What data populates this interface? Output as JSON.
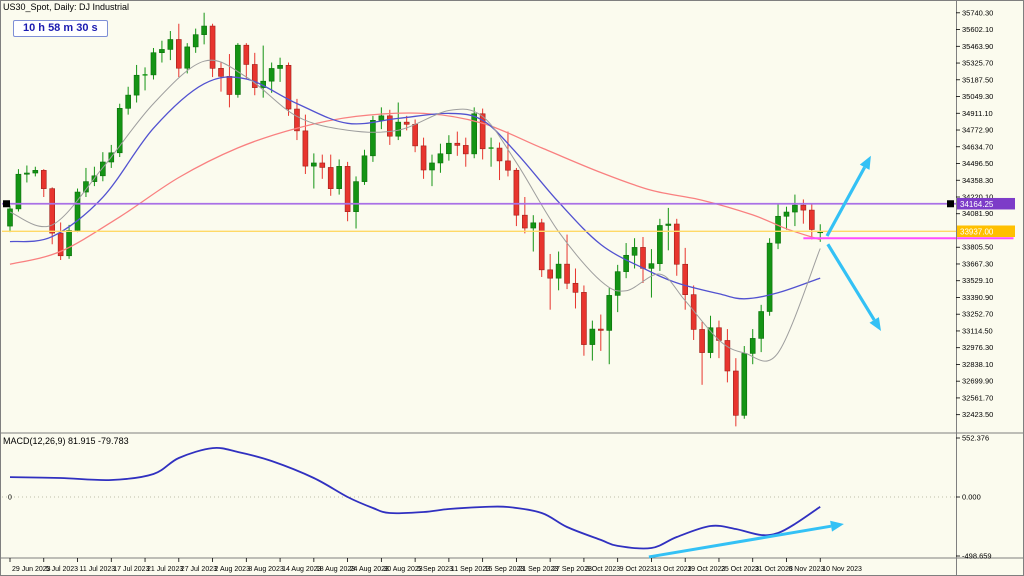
{
  "window": {
    "title": "US30_Spot, Daily: DJ Industrial",
    "timer": "10 h 58 m 30 s"
  },
  "colors": {
    "background": "#FBFBEE",
    "frame": "#7F7F7F",
    "bull": "#149414",
    "bull_border": "#0A6E0A",
    "bear": "#E8352E",
    "bear_border": "#9E1F1A",
    "ma_slow": "#F98080",
    "ma_medium": "#5252D0",
    "ma_fast": "#9E9E9E",
    "purple_line": "#A970E6",
    "purple_badge": "#7D3CC8",
    "yellow_line": "#FFD966",
    "yellow_badge": "#FFC000",
    "magenta_line": "#FF4DFF",
    "cyan_arrow": "#33C1F5",
    "macd_line": "#3030C0",
    "axis_text": "#000000"
  },
  "chart_data": [
    {
      "type": "candlestick",
      "title": "US30_Spot, Daily: DJ Industrial",
      "timeframe": "Daily",
      "grid": false,
      "ylim": [
        32330,
        35780
      ],
      "y_ticks": [
        "35740.30",
        "35602.10",
        "35463.90",
        "35325.70",
        "35187.50",
        "35049.30",
        "34911.10",
        "34772.90",
        "34634.70",
        "34496.50",
        "34358.30",
        "34220.10",
        "34081.90",
        "33805.50",
        "33667.30",
        "33529.10",
        "33390.90",
        "33252.70",
        "33114.50",
        "32976.30",
        "32838.10",
        "32699.90",
        "32561.70",
        "32423.50"
      ],
      "x_ticks": [
        "29 Jun 2023",
        "5 Jul 2023",
        "11 Jul 2023",
        "17 Jul 2023",
        "21 Jul 2023",
        "27 Jul 2023",
        "2 Aug 2023",
        "8 Aug 2023",
        "14 Aug 2023",
        "18 Aug 2023",
        "24 Aug 2023",
        "30 Aug 2023",
        "5 Sep 2023",
        "11 Sep 2023",
        "15 Sep 2023",
        "21 Sep 2023",
        "27 Sep 2023",
        "3 Oct 2023",
        "9 Oct 2023",
        "13 Oct 2023",
        "19 Oct 2023",
        "25 Oct 2023",
        "31 Oct 2023",
        "6 Nov 2023",
        "10 Nov 2023"
      ],
      "x_tick_every_bars": 4,
      "ohlc": [
        [
          "29 Jun",
          33980,
          34150,
          33930,
          34122
        ],
        [
          "30 Jun",
          34122,
          34450,
          34100,
          34408
        ],
        [
          "3 Jul",
          34408,
          34480,
          34340,
          34418
        ],
        [
          "4 Jul",
          34418,
          34470,
          34390,
          34440
        ],
        [
          "5 Jul",
          34440,
          34450,
          34220,
          34289
        ],
        [
          "6 Jul",
          34289,
          34300,
          33830,
          33922
        ],
        [
          "7 Jul",
          33922,
          34010,
          33700,
          33735
        ],
        [
          "10 Jul",
          33735,
          33990,
          33710,
          33944
        ],
        [
          "11 Jul",
          33944,
          34290,
          33930,
          34261
        ],
        [
          "12 Jul",
          34261,
          34460,
          34220,
          34347
        ],
        [
          "13 Jul",
          34347,
          34470,
          34310,
          34395
        ],
        [
          "14 Jul",
          34395,
          34590,
          34350,
          34509
        ],
        [
          "17 Jul",
          34509,
          34650,
          34460,
          34585
        ],
        [
          "18 Jul",
          34585,
          34990,
          34550,
          34952
        ],
        [
          "19 Jul",
          34952,
          35130,
          34900,
          35061
        ],
        [
          "20 Jul",
          35061,
          35310,
          35000,
          35225
        ],
        [
          "21 Jul",
          35225,
          35290,
          35100,
          35228
        ],
        [
          "24 Jul",
          35228,
          35450,
          35190,
          35411
        ],
        [
          "25 Jul",
          35411,
          35510,
          35330,
          35438
        ],
        [
          "26 Jul",
          35438,
          35590,
          35350,
          35520
        ],
        [
          "27 Jul",
          35520,
          35650,
          35210,
          35283
        ],
        [
          "28 Jul",
          35283,
          35490,
          35240,
          35459
        ],
        [
          "31 Jul",
          35459,
          35610,
          35410,
          35560
        ],
        [
          "1 Aug",
          35560,
          35741,
          35480,
          35631
        ],
        [
          "2 Aug",
          35631,
          35650,
          35210,
          35282
        ],
        [
          "3 Aug",
          35282,
          35330,
          35090,
          35216
        ],
        [
          "4 Aug",
          35216,
          35400,
          34960,
          35066
        ],
        [
          "7 Aug",
          35066,
          35490,
          35040,
          35473
        ],
        [
          "8 Aug",
          35473,
          35490,
          35190,
          35314
        ],
        [
          "9 Aug",
          35314,
          35410,
          35060,
          35123
        ],
        [
          "10 Aug",
          35123,
          35470,
          35040,
          35176
        ],
        [
          "11 Aug",
          35176,
          35330,
          35080,
          35281
        ],
        [
          "14 Aug",
          35281,
          35370,
          35170,
          35307
        ],
        [
          "15 Aug",
          35307,
          35330,
          34890,
          34946
        ],
        [
          "16 Aug",
          34946,
          35030,
          34690,
          34766
        ],
        [
          "17 Aug",
          34766,
          34900,
          34410,
          34475
        ],
        [
          "18 Aug",
          34475,
          34580,
          34290,
          34501
        ],
        [
          "21 Aug",
          34501,
          34570,
          34370,
          34464
        ],
        [
          "22 Aug",
          34464,
          34570,
          34230,
          34289
        ],
        [
          "23 Aug",
          34289,
          34530,
          34240,
          34473
        ],
        [
          "24 Aug",
          34473,
          34510,
          34020,
          34099
        ],
        [
          "25 Aug",
          34099,
          34390,
          33960,
          34347
        ],
        [
          "28 Aug",
          34347,
          34610,
          34320,
          34560
        ],
        [
          "29 Aug",
          34560,
          34890,
          34510,
          34853
        ],
        [
          "30 Aug",
          34853,
          34960,
          34780,
          34890
        ],
        [
          "31 Aug",
          34890,
          34940,
          34650,
          34722
        ],
        [
          "1 Sep",
          34722,
          35000,
          34690,
          34838
        ],
        [
          "4 Sep",
          34838,
          34890,
          34770,
          34820
        ],
        [
          "5 Sep",
          34820,
          34860,
          34590,
          34642
        ],
        [
          "6 Sep",
          34642,
          34710,
          34370,
          34443
        ],
        [
          "7 Sep",
          34443,
          34570,
          34310,
          34501
        ],
        [
          "8 Sep",
          34501,
          34660,
          34420,
          34577
        ],
        [
          "11 Sep",
          34577,
          34730,
          34520,
          34664
        ],
        [
          "12 Sep",
          34664,
          34760,
          34560,
          34646
        ],
        [
          "13 Sep",
          34646,
          34710,
          34470,
          34576
        ],
        [
          "14 Sep",
          34576,
          34960,
          34540,
          34907
        ],
        [
          "15 Sep",
          34907,
          34950,
          34530,
          34618
        ],
        [
          "18 Sep",
          34618,
          34710,
          34470,
          34624
        ],
        [
          "19 Sep",
          34624,
          34670,
          34360,
          34518
        ],
        [
          "20 Sep",
          34518,
          34760,
          34390,
          34441
        ],
        [
          "21 Sep",
          34441,
          34460,
          33980,
          34070
        ],
        [
          "22 Sep",
          34070,
          34220,
          33920,
          33964
        ],
        [
          "25 Sep",
          33964,
          34070,
          33770,
          34007
        ],
        [
          "26 Sep",
          34007,
          34040,
          33560,
          33619
        ],
        [
          "27 Sep",
          33619,
          33750,
          33290,
          33550
        ],
        [
          "28 Sep",
          33550,
          33770,
          33450,
          33666
        ],
        [
          "29 Sep",
          33666,
          33910,
          33460,
          33508
        ],
        [
          "2 Oct",
          33508,
          33630,
          33300,
          33433
        ],
        [
          "3 Oct",
          33433,
          33490,
          32910,
          33002
        ],
        [
          "4 Oct",
          33002,
          33200,
          32870,
          33130
        ],
        [
          "5 Oct",
          33130,
          33250,
          32950,
          33119
        ],
        [
          "6 Oct",
          33119,
          33470,
          32840,
          33408
        ],
        [
          "9 Oct",
          33408,
          33660,
          33270,
          33604
        ],
        [
          "10 Oct",
          33604,
          33840,
          33550,
          33739
        ],
        [
          "11 Oct",
          33739,
          33880,
          33630,
          33804
        ],
        [
          "12 Oct",
          33804,
          33890,
          33510,
          33631
        ],
        [
          "13 Oct",
          33631,
          33790,
          33390,
          33670
        ],
        [
          "16 Oct",
          33670,
          34040,
          33610,
          33985
        ],
        [
          "17 Oct",
          33985,
          34130,
          33780,
          33997
        ],
        [
          "18 Oct",
          33997,
          34040,
          33570,
          33665
        ],
        [
          "19 Oct",
          33665,
          33800,
          33290,
          33414
        ],
        [
          "20 Oct",
          33414,
          33490,
          33040,
          33127
        ],
        [
          "23 Oct",
          33127,
          33190,
          32670,
          32936
        ],
        [
          "24 Oct",
          32936,
          33240,
          32890,
          33141
        ],
        [
          "25 Oct",
          33141,
          33200,
          32890,
          33036
        ],
        [
          "26 Oct",
          33036,
          33130,
          32690,
          32784
        ],
        [
          "27 Oct",
          32784,
          32890,
          32327,
          32418
        ],
        [
          "30 Oct",
          32418,
          32990,
          32390,
          32929
        ],
        [
          "31 Oct",
          32929,
          33130,
          32840,
          33053
        ],
        [
          "1 Nov",
          33053,
          33330,
          32940,
          33275
        ],
        [
          "2 Nov",
          33275,
          33880,
          33240,
          33839
        ],
        [
          "3 Nov",
          33839,
          34160,
          33790,
          34061
        ],
        [
          "6 Nov",
          34061,
          34140,
          33950,
          34096
        ],
        [
          "7 Nov",
          34096,
          34240,
          33980,
          34153
        ],
        [
          "8 Nov",
          34153,
          34200,
          34000,
          34112
        ],
        [
          "9 Nov",
          34112,
          34160,
          33870,
          33952
        ],
        [
          "10 Nov",
          33925,
          33995,
          33850,
          33935
        ]
      ],
      "moving_averages": [
        {
          "name": "slow-ma-red",
          "points": [
            [
              0,
              33665
            ],
            [
              6,
              33771
            ],
            [
              13,
              34056
            ],
            [
              20,
              34381
            ],
            [
              27,
              34625
            ],
            [
              34,
              34788
            ],
            [
              41,
              34885
            ],
            [
              49,
              34910
            ],
            [
              56,
              34828
            ],
            [
              63,
              34625
            ],
            [
              70,
              34422
            ],
            [
              76,
              34275
            ],
            [
              82,
              34194
            ],
            [
              88,
              34072
            ],
            [
              92,
              33958
            ],
            [
              96,
              33868
            ]
          ]
        },
        {
          "name": "medium-ma-blue",
          "points": [
            [
              0,
              33852
            ],
            [
              5,
              33893
            ],
            [
              11,
              34218
            ],
            [
              17,
              34788
            ],
            [
              23,
              35154
            ],
            [
              28,
              35194
            ],
            [
              34,
              34991
            ],
            [
              40,
              34828
            ],
            [
              46,
              34869
            ],
            [
              52,
              34910
            ],
            [
              56,
              34853
            ],
            [
              60,
              34584
            ],
            [
              65,
              34178
            ],
            [
              70,
              33828
            ],
            [
              75,
              33633
            ],
            [
              79,
              33511
            ],
            [
              84,
              33421
            ],
            [
              87,
              33380
            ],
            [
              91,
              33429
            ],
            [
              96,
              33551
            ]
          ]
        },
        {
          "name": "fast-ma-gray",
          "points": [
            [
              0,
              34096
            ],
            [
              5,
              33990
            ],
            [
              11,
              34462
            ],
            [
              17,
              34991
            ],
            [
              23,
              35341
            ],
            [
              28,
              35211
            ],
            [
              34,
              34885
            ],
            [
              40,
              34771
            ],
            [
              46,
              34771
            ],
            [
              52,
              34934
            ],
            [
              56,
              34885
            ],
            [
              60,
              34503
            ],
            [
              65,
              33934
            ],
            [
              70,
              33527
            ],
            [
              73,
              33446
            ],
            [
              77,
              33584
            ],
            [
              80,
              33364
            ],
            [
              84,
              33039
            ],
            [
              87,
              32933
            ],
            [
              91,
              32933
            ],
            [
              96,
              33795
            ]
          ]
        }
      ],
      "hlines": [
        {
          "name": "purple-resistance-line",
          "price": 34164.25,
          "label": "34164.25",
          "style": "purple",
          "anchors": true
        },
        {
          "name": "yellow-support-line",
          "price": 33937.0,
          "label": "33937.00",
          "style": "yellow"
        },
        {
          "name": "magenta-level-line",
          "price": 33880,
          "style": "magenta",
          "from_bar": 94,
          "to_bar": 118.9
        }
      ],
      "arrows": [
        {
          "name": "bullish-scenario-arrow",
          "from": [
            96.8,
            33898
          ],
          "to": [
            102.0,
            34560
          ]
        },
        {
          "name": "bearish-scenario-arrow",
          "from": [
            96.9,
            33830
          ],
          "to": [
            103.2,
            33114
          ]
        }
      ]
    },
    {
      "type": "line",
      "name": "MACD(12,26,9)",
      "label": "MACD(12,26,9) 81.915 -79.783",
      "y_ticks": [
        "552.376",
        "0.000",
        "-498.659"
      ],
      "ylim": [
        -498.659,
        552.376
      ],
      "zero_label": "0",
      "zero_line": true,
      "points": [
        [
          0,
          163
        ],
        [
          6,
          155
        ],
        [
          12,
          139
        ],
        [
          17,
          188
        ],
        [
          20,
          319
        ],
        [
          24,
          400
        ],
        [
          27,
          368
        ],
        [
          31,
          294
        ],
        [
          36,
          155
        ],
        [
          40,
          0
        ],
        [
          43,
          -90
        ],
        [
          45,
          -131
        ],
        [
          49,
          -123
        ],
        [
          52,
          -98
        ],
        [
          56,
          -82
        ],
        [
          59,
          -82
        ],
        [
          63,
          -131
        ],
        [
          66,
          -245
        ],
        [
          70,
          -351
        ],
        [
          72,
          -400
        ],
        [
          76,
          -417
        ],
        [
          79,
          -327
        ],
        [
          83,
          -237
        ],
        [
          86,
          -262
        ],
        [
          89,
          -311
        ],
        [
          91,
          -294
        ],
        [
          93,
          -221
        ],
        [
          96,
          -79.8
        ]
      ],
      "arrow": {
        "name": "macd-trend-arrow",
        "from": [
          75.7,
          -490
        ],
        "to": [
          98.8,
          -221
        ]
      }
    }
  ]
}
